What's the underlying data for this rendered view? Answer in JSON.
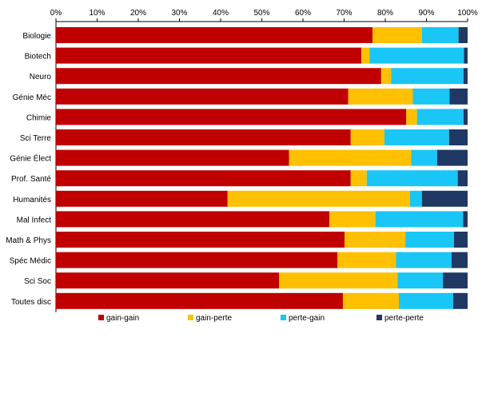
{
  "chart_data": {
    "type": "bar",
    "orientation": "horizontal",
    "stacked": true,
    "value_unit": "%",
    "xlim": [
      0,
      100
    ],
    "x_ticks": [
      "0%",
      "10%",
      "20%",
      "30%",
      "40%",
      "50%",
      "60%",
      "70%",
      "80%",
      "90%",
      "100%"
    ],
    "x_axis_position": "top",
    "grid": false,
    "legend_position": "bottom",
    "categories": [
      "Biologie",
      "Biotech",
      "Neuro",
      "Génie Méc",
      "Chimie",
      "Sci Terre",
      "Génie Élect",
      "Prof. Santé",
      "Humanités",
      "Mal Infect",
      "Math & Phys",
      "Spéc Médic",
      "Sci Soc",
      "Toutes disc"
    ],
    "series": [
      {
        "name": "gain-gain",
        "color": "#c00000",
        "values": [
          76.9,
          74.2,
          79.0,
          71.0,
          85.1,
          71.6,
          56.6,
          71.6,
          41.7,
          66.4,
          70.1,
          68.4,
          54.2,
          69.7
        ]
      },
      {
        "name": "gain-perte",
        "color": "#ffc000",
        "values": [
          12.0,
          2.0,
          2.4,
          15.7,
          2.6,
          8.2,
          29.7,
          3.9,
          44.3,
          11.2,
          14.8,
          14.2,
          28.8,
          13.6
        ]
      },
      {
        "name": "perte-gain",
        "color": "#19c6f5",
        "values": [
          8.9,
          22.9,
          17.6,
          8.9,
          11.3,
          15.7,
          6.3,
          22.1,
          2.9,
          21.3,
          11.8,
          13.5,
          11.0,
          13.2
        ]
      },
      {
        "name": "perte-perte",
        "color": "#1f3864",
        "values": [
          2.2,
          0.9,
          1.0,
          4.4,
          1.0,
          4.5,
          7.4,
          2.4,
          11.1,
          1.1,
          3.3,
          3.9,
          6.0,
          3.5
        ]
      }
    ]
  }
}
